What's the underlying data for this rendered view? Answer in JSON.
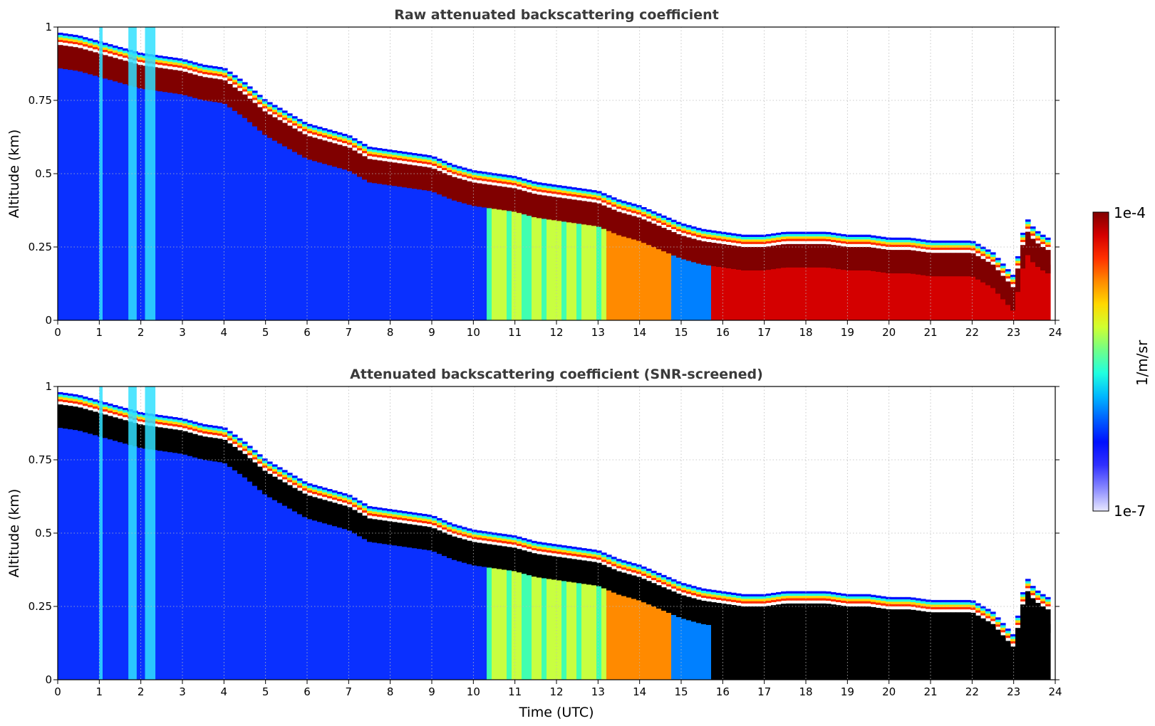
{
  "chart_data": [
    {
      "type": "heatmap",
      "title": "Raw attenuated backscattering coefficient",
      "xlabel": "",
      "ylabel": "Altitude (km)",
      "xlim": [
        0,
        24
      ],
      "ylim": [
        0,
        1
      ],
      "xticks": [
        "0",
        "1",
        "2",
        "3",
        "4",
        "5",
        "6",
        "7",
        "8",
        "9",
        "10",
        "11",
        "12",
        "13",
        "14",
        "15",
        "16",
        "17",
        "18",
        "19",
        "20",
        "21",
        "22",
        "23",
        "24"
      ],
      "yticks": [
        "0",
        "0.25",
        "0.5",
        "0.75",
        "1"
      ],
      "grid": true,
      "saturate_color": "#800000",
      "data_end_time": 23.8,
      "layer_top_km": {
        "time": [
          0,
          0.5,
          1,
          1.5,
          2,
          2.5,
          3,
          3.5,
          4,
          4.5,
          5,
          5.5,
          6,
          6.5,
          7,
          7.5,
          8,
          8.5,
          9,
          9.5,
          10,
          10.5,
          11,
          11.5,
          12,
          12.5,
          13,
          13.5,
          14,
          14.5,
          15,
          15.5,
          16,
          16.5,
          17,
          17.5,
          18,
          18.5,
          19,
          19.5,
          20,
          20.5,
          21,
          21.5,
          22,
          22.5,
          23,
          23.3,
          23.5,
          23.8
        ],
        "value": [
          0.95,
          0.94,
          0.92,
          0.9,
          0.88,
          0.87,
          0.86,
          0.84,
          0.83,
          0.78,
          0.72,
          0.68,
          0.64,
          0.62,
          0.6,
          0.56,
          0.55,
          0.54,
          0.53,
          0.5,
          0.48,
          0.47,
          0.46,
          0.44,
          0.43,
          0.42,
          0.41,
          0.38,
          0.36,
          0.33,
          0.3,
          0.28,
          0.27,
          0.26,
          0.26,
          0.27,
          0.27,
          0.27,
          0.26,
          0.26,
          0.25,
          0.25,
          0.24,
          0.24,
          0.24,
          0.2,
          0.12,
          0.32,
          0.28,
          0.25
        ]
      }
    },
    {
      "type": "heatmap",
      "title": "Attenuated backscattering coefficient (SNR-screened)",
      "xlabel": "Time (UTC)",
      "ylabel": "Altitude (km)",
      "xlim": [
        0,
        24
      ],
      "ylim": [
        0,
        1
      ],
      "xticks": [
        "0",
        "1",
        "2",
        "3",
        "4",
        "5",
        "6",
        "7",
        "8",
        "9",
        "10",
        "11",
        "12",
        "13",
        "14",
        "15",
        "16",
        "17",
        "18",
        "19",
        "20",
        "21",
        "22",
        "23",
        "24"
      ],
      "yticks": [
        "0",
        "0.25",
        "0.5",
        "0.75",
        "1"
      ],
      "grid": true,
      "saturate_color": "#000000",
      "data_end_time": 23.8,
      "layer_top_km": {
        "time": [
          0,
          0.5,
          1,
          1.5,
          2,
          2.5,
          3,
          3.5,
          4,
          4.5,
          5,
          5.5,
          6,
          6.5,
          7,
          7.5,
          8,
          8.5,
          9,
          9.5,
          10,
          10.5,
          11,
          11.5,
          12,
          12.5,
          13,
          13.5,
          14,
          14.5,
          15,
          15.5,
          16,
          16.5,
          17,
          17.5,
          18,
          18.5,
          19,
          19.5,
          20,
          20.5,
          21,
          21.5,
          22,
          22.5,
          23,
          23.3,
          23.5,
          23.8
        ],
        "value": [
          0.95,
          0.94,
          0.92,
          0.9,
          0.88,
          0.87,
          0.86,
          0.84,
          0.83,
          0.78,
          0.72,
          0.68,
          0.64,
          0.62,
          0.6,
          0.56,
          0.55,
          0.54,
          0.53,
          0.5,
          0.48,
          0.47,
          0.46,
          0.44,
          0.43,
          0.42,
          0.41,
          0.38,
          0.36,
          0.33,
          0.3,
          0.28,
          0.27,
          0.26,
          0.26,
          0.27,
          0.27,
          0.27,
          0.26,
          0.26,
          0.25,
          0.25,
          0.24,
          0.24,
          0.24,
          0.2,
          0.12,
          0.32,
          0.28,
          0.25
        ]
      }
    }
  ],
  "colorbar": {
    "label": "1/m/sr",
    "max_label": "1e-4",
    "min_label": "1e-7",
    "colors": [
      "#800000",
      "#d40000",
      "#ff3000",
      "#ff8a00",
      "#ffd800",
      "#d0ff30",
      "#70ff88",
      "#20ffe0",
      "#00b8ff",
      "#0060ff",
      "#0010ff",
      "#3030ff",
      "#8888ff",
      "#e8e8ff"
    ]
  }
}
